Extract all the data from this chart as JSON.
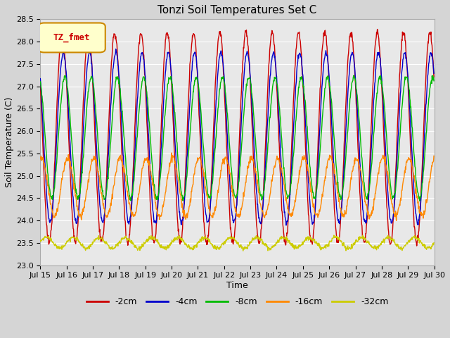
{
  "title": "Tonzi Soil Temperatures Set C",
  "xlabel": "Time",
  "ylabel": "Soil Temperature (C)",
  "ylim": [
    23.0,
    28.5
  ],
  "yticks": [
    23.0,
    23.5,
    24.0,
    24.5,
    25.0,
    25.5,
    26.0,
    26.5,
    27.0,
    27.5,
    28.0,
    28.5
  ],
  "start_day": 15,
  "end_day": 30,
  "n_points": 1080,
  "series": {
    "-2cm": {
      "color": "#cc0000",
      "amplitude": 2.35,
      "mean": 25.85,
      "phase_hours": 14.0,
      "noise": 0.04
    },
    "-4cm": {
      "color": "#0000cc",
      "amplitude": 1.9,
      "mean": 25.85,
      "phase_hours": 15.0,
      "noise": 0.03
    },
    "-8cm": {
      "color": "#00bb00",
      "amplitude": 1.35,
      "mean": 25.85,
      "phase_hours": 16.5,
      "noise": 0.03
    },
    "-16cm": {
      "color": "#ff8800",
      "amplitude": 0.65,
      "mean": 24.75,
      "phase_hours": 19.0,
      "noise": 0.04
    },
    "-32cm": {
      "color": "#cccc00",
      "amplitude": 0.12,
      "mean": 23.5,
      "phase_hours": 0.0,
      "noise": 0.025
    }
  },
  "legend_label_box": "TZ_fmet",
  "legend_box_facecolor": "#ffffcc",
  "legend_box_edgecolor": "#cc8800",
  "legend_box_textcolor": "#cc0000",
  "plot_bg_color": "#e8e8e8",
  "fig_bg_color": "#d5d5d5",
  "grid_color": "#ffffff",
  "title_fontsize": 11,
  "axis_label_fontsize": 9,
  "tick_fontsize": 8
}
